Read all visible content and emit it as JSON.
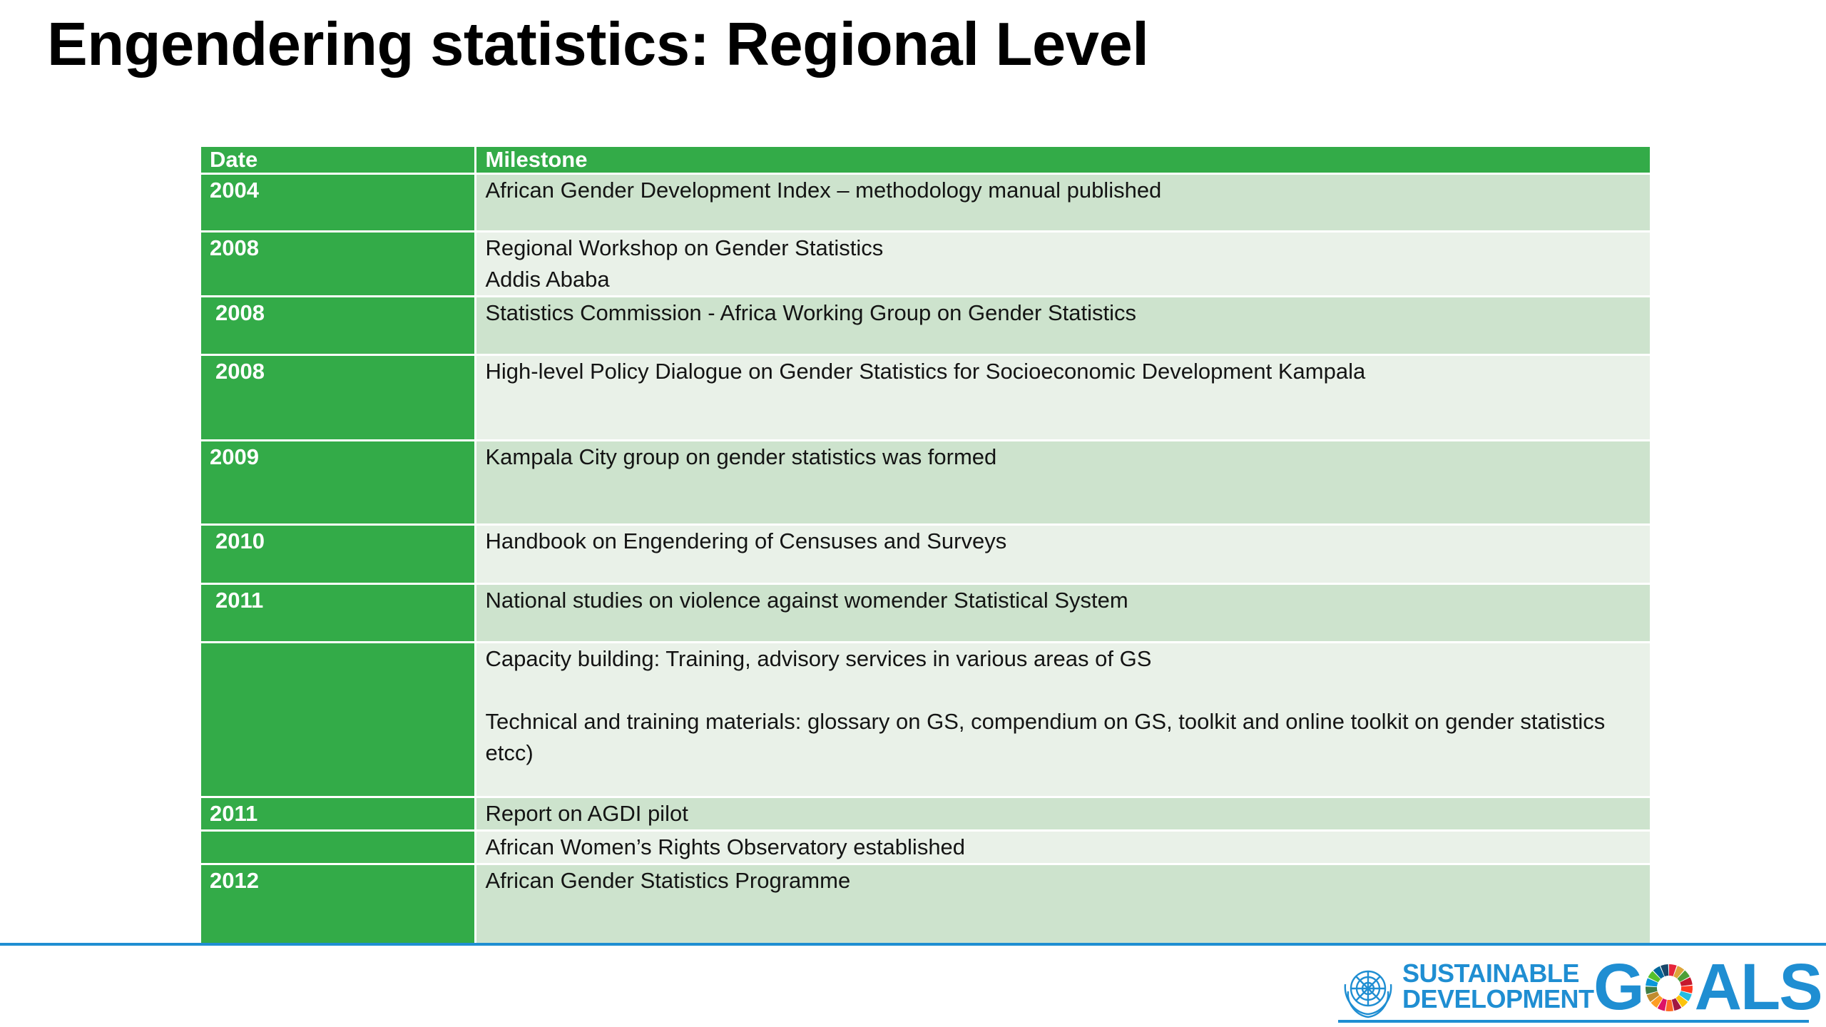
{
  "slide": {
    "title": "Engendering statistics: Regional Level"
  },
  "table": {
    "headers": {
      "date": "Date",
      "milestone": "Milestone"
    },
    "rows": [
      {
        "date": "2004",
        "milestone": [
          "African Gender Development Index – methodology manual published"
        ]
      },
      {
        "date": "2008",
        "milestone": [
          "Regional Workshop on Gender Statistics",
          "Addis Ababa"
        ]
      },
      {
        "date": "2008",
        "milestone": [
          "Statistics Commission -  Africa Working Group on Gender Statistics"
        ]
      },
      {
        "date": "2008",
        "milestone": [
          "High-level Policy Dialogue on Gender Statistics for Socioeconomic Development Kampala"
        ]
      },
      {
        "date": "2009",
        "milestone": [
          "Kampala City group on gender statistics was formed"
        ]
      },
      {
        "date": "2010",
        "milestone": [
          "Handbook on Engendering of Censuses and Surveys"
        ]
      },
      {
        "date": "2011",
        "milestone": [
          "National studies on violence against womender Statistical System"
        ]
      },
      {
        "date": "",
        "milestone": [
          "Capacity building: Training, advisory services in various areas of GS",
          "Technical and training materials: glossary on GS, compendium on GS, toolkit and online toolkit on gender statistics etcc)"
        ]
      },
      {
        "date": "2011",
        "milestone": [
          "Report on AGDI pilot"
        ]
      },
      {
        "date": "",
        "milestone": [
          "African Women’s Rights Observatory established"
        ]
      },
      {
        "date": "2012",
        "milestone": [
          "African Gender Statistics Programme"
        ]
      }
    ]
  },
  "logo": {
    "line1": "SUSTAINABLE",
    "line2": "DEVELOPMENT",
    "goals_g": "G",
    "goals_rest": "ALS"
  },
  "colors": {
    "green": "#33ab48",
    "dark_row": "#cde3cd",
    "light_row": "#e9f1e8",
    "blue": "#1f8ed2"
  }
}
